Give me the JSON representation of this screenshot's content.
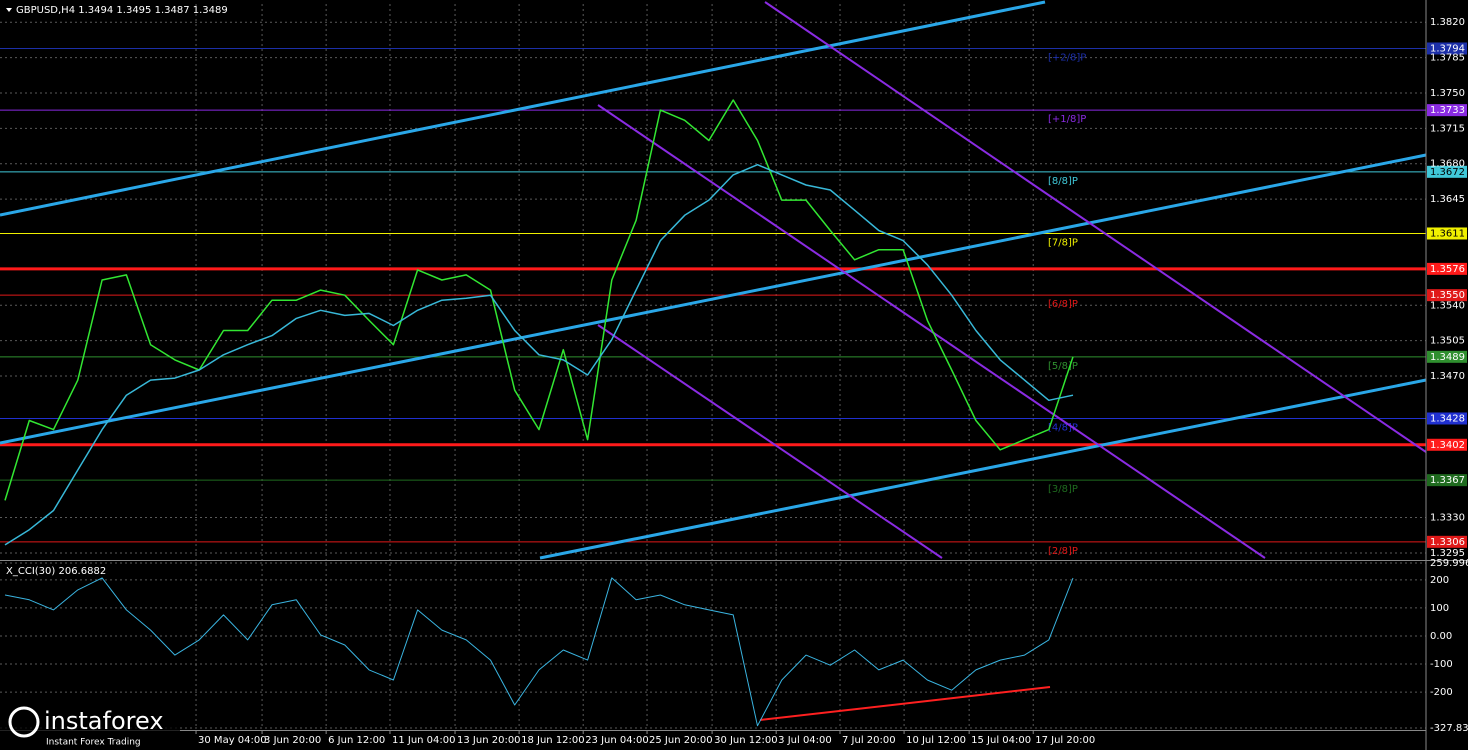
{
  "chart_data": [
    {
      "type": "line",
      "title": "GBPUSD,H4 1.3494 1.3495 1.3487 1.3489",
      "xlim": [
        0,
        58.5
      ],
      "xticks": [
        {
          "value": 7.87,
          "label": "30 May 04:00"
        },
        {
          "value": 10.59,
          "label": "3 Jun 20:00"
        },
        {
          "value": 13.23,
          "label": "6 Jun 12:00"
        },
        {
          "value": 15.86,
          "label": "11 Jun 04:00"
        },
        {
          "value": 18.54,
          "label": "13 Jun 20:00"
        },
        {
          "value": 21.18,
          "label": "18 Jun 12:00"
        },
        {
          "value": 23.82,
          "label": "23 Jun 04:00"
        },
        {
          "value": 26.45,
          "label": "25 Jun 20:00"
        },
        {
          "value": 29.13,
          "label": "30 Jun 12:00"
        },
        {
          "value": 31.77,
          "label": "3 Jul 04:00"
        },
        {
          "value": 34.4,
          "label": "7 Jul 20:00"
        },
        {
          "value": 37.04,
          "label": "10 Jul 12:00"
        },
        {
          "value": 39.72,
          "label": "15 Jul 04:00"
        },
        {
          "value": 42.36,
          "label": "17 Jul 20:00"
        }
      ],
      "ylim": [
        1.329,
        1.3838
      ],
      "yticks": [
        {
          "value": 1.382,
          "label": "1.3820"
        },
        {
          "value": 1.3785,
          "label": "1.3785"
        },
        {
          "value": 1.375,
          "label": "1.3750"
        },
        {
          "value": 1.3715,
          "label": "1.3715"
        },
        {
          "value": 1.368,
          "label": "1.3680"
        },
        {
          "value": 1.3645,
          "label": "1.3645"
        },
        {
          "value": 1.354,
          "label": "1.3540"
        },
        {
          "value": 1.3505,
          "label": "1.3505"
        },
        {
          "value": 1.347,
          "label": "1.3470"
        },
        {
          "value": 1.333,
          "label": "1.3330"
        },
        {
          "value": 1.3295,
          "label": "1.3295"
        }
      ],
      "grid": true,
      "series": [
        {
          "color": "#32e632",
          "width": 1.5,
          "values": [
            1.3347,
            1.3426,
            1.3417,
            1.3466,
            1.3565,
            1.357,
            1.3501,
            1.3486,
            1.3476,
            1.3515,
            1.3515,
            1.3545,
            1.3545,
            1.3555,
            1.355,
            1.3525,
            1.3501,
            1.3575,
            1.3565,
            1.357,
            1.3555,
            1.3456,
            1.3417,
            1.3496,
            1.3407,
            1.3565,
            1.3624,
            1.3733,
            1.3723,
            1.3703,
            1.3743,
            1.3703,
            1.3644,
            1.3644,
            1.3614,
            1.3585,
            1.3595,
            1.3595,
            1.3525,
            1.3476,
            1.3426,
            1.3397,
            1.3407,
            1.3417,
            1.3489
          ]
        },
        {
          "color": "#38b8d8",
          "width": 1.5,
          "values": [
            1.3303,
            1.3318,
            1.3337,
            1.3377,
            1.3417,
            1.3451,
            1.3466,
            1.3468,
            1.3476,
            1.3491,
            1.3501,
            1.351,
            1.3527,
            1.3535,
            1.353,
            1.3532,
            1.352,
            1.3535,
            1.3545,
            1.3547,
            1.355,
            1.3515,
            1.3491,
            1.3486,
            1.3471,
            1.3506,
            1.3555,
            1.3604,
            1.3629,
            1.3644,
            1.3669,
            1.3679,
            1.3669,
            1.3659,
            1.3654,
            1.3634,
            1.3614,
            1.3604,
            1.358,
            1.355,
            1.3515,
            1.3486,
            1.3466,
            1.3446,
            1.3451
          ]
        }
      ],
      "levels": [
        {
          "value": 1.3794,
          "label": "1.3794",
          "tag": "[+2/8]P",
          "color": "#1c2fa8",
          "text_color": "#ffffff",
          "width": 1
        },
        {
          "value": 1.3733,
          "label": "1.3733",
          "tag": "[+1/8]P",
          "color": "#8a2be2",
          "text_color": "#ffffff",
          "width": 1
        },
        {
          "value": 1.3672,
          "label": "1.3672",
          "tag": "[8/8]P",
          "color": "#40c8d8",
          "text_color": "#000000",
          "width": 1
        },
        {
          "value": 1.3611,
          "label": "1.3611",
          "tag": "[7/8]P",
          "color": "#f0f000",
          "text_color": "#000000",
          "width": 1
        },
        {
          "value": 1.3576,
          "label": "1.3576",
          "color": "#ff1a1a",
          "text_color": "#ffffff",
          "width": 3
        },
        {
          "value": 1.355,
          "label": "1.3550",
          "tag": "[6/8]P",
          "color": "#e01818",
          "text_color": "#ffffff",
          "width": 1
        },
        {
          "value": 1.3489,
          "label": "1.3489",
          "tag": "[5/8]P",
          "color": "#2f8f2f",
          "text_color": "#ffffff",
          "width": 1
        },
        {
          "value": 1.3428,
          "label": "1.3428",
          "tag": "[4/8]P",
          "color": "#2030d0",
          "text_color": "#ffffff",
          "width": 1
        },
        {
          "value": 1.3402,
          "label": "1.3402",
          "color": "#ff1a1a",
          "text_color": "#ffffff",
          "width": 3
        },
        {
          "value": 1.3367,
          "label": "1.3367",
          "tag": "[3/8]P",
          "color": "#1f6b1f",
          "text_color": "#ffffff",
          "width": 1
        },
        {
          "value": 1.3306,
          "label": "1.3306",
          "tag": "[2/8]P",
          "color": "#e01818",
          "text_color": "#ffffff",
          "width": 1
        }
      ]
    },
    {
      "type": "line",
      "title": "X_CCI(30) 206.6882",
      "xlim": [
        0,
        58.5
      ],
      "ylim": [
        -327.8328,
        259.9969
      ],
      "yticks": [
        {
          "value": 259.9969,
          "label": "259.9969"
        },
        200,
        100,
        {
          "value": 0,
          "label": "0.00"
        },
        -100,
        -200,
        {
          "value": -327.8328,
          "label": "-327.8328"
        }
      ],
      "grid": true,
      "series": [
        {
          "color": "#3ab4e0",
          "width": 1,
          "values": [
            146,
            129,
            93,
            164,
            207,
            93,
            21,
            -68,
            -14,
            75,
            -14,
            111,
            129,
            4,
            -32,
            -121,
            -157,
            93,
            21,
            -14,
            -86,
            -246,
            -121,
            -50,
            -86,
            207,
            129,
            146,
            111,
            93,
            75,
            -320,
            -157,
            -68,
            -104,
            -50,
            -121,
            -86,
            -157,
            -193,
            -121,
            -86,
            -68,
            -14,
            206.6882
          ]
        }
      ]
    }
  ],
  "watermark": {
    "brand": "instaforex",
    "tagline": "Instant Forex Trading"
  }
}
